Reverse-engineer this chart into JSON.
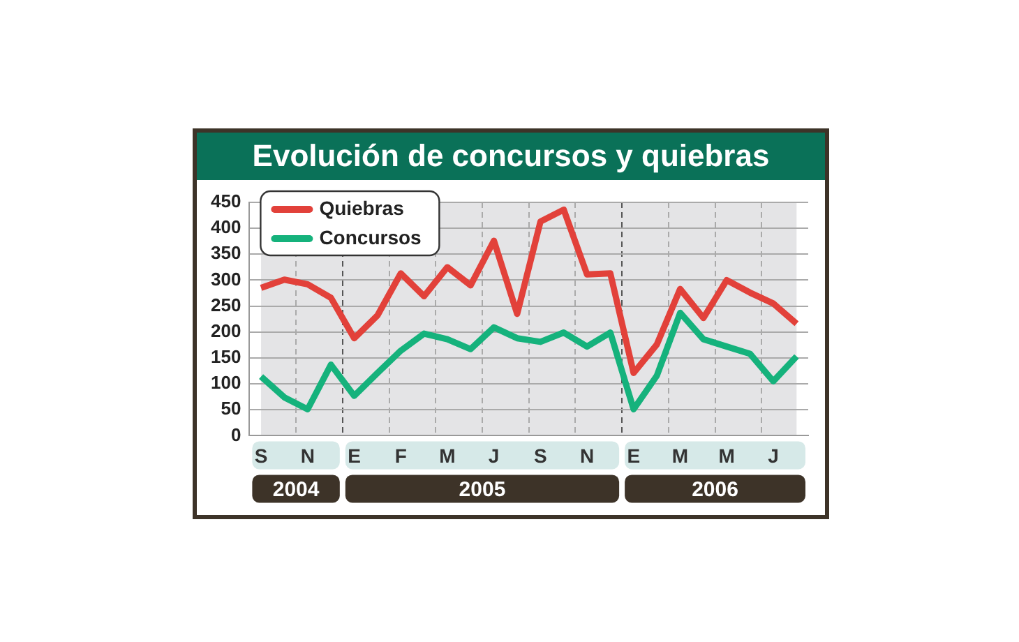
{
  "chart_data": {
    "type": "line",
    "title": "Evolución de concursos y quiebras",
    "categories": [
      "S",
      null,
      "N",
      null,
      "E",
      null,
      "F",
      null,
      "M",
      null,
      "J",
      null,
      "S",
      null,
      "N",
      null,
      "E",
      null,
      "M",
      null,
      "M",
      null,
      "J",
      null
    ],
    "series": [
      {
        "name": "Quiebras",
        "color": "#e2413a",
        "values": [
          285,
          301,
          292,
          266,
          188,
          232,
          313,
          269,
          325,
          290,
          376,
          235,
          413,
          436,
          311,
          313,
          121,
          176,
          283,
          227,
          300,
          276,
          255,
          216
        ]
      },
      {
        "name": "Concursos",
        "color": "#15b27c",
        "values": [
          114,
          74,
          51,
          137,
          77,
          121,
          164,
          197,
          186,
          167,
          209,
          188,
          181,
          199,
          172,
          199,
          51,
          116,
          237,
          186,
          172,
          158,
          105,
          153
        ]
      }
    ],
    "ylim": [
      0,
      450
    ],
    "yticks": [
      0,
      50,
      100,
      150,
      200,
      250,
      300,
      350,
      400,
      450
    ],
    "grid": true,
    "legend": "top left",
    "annotations": [
      "2004",
      "2005",
      "2006"
    ]
  }
}
